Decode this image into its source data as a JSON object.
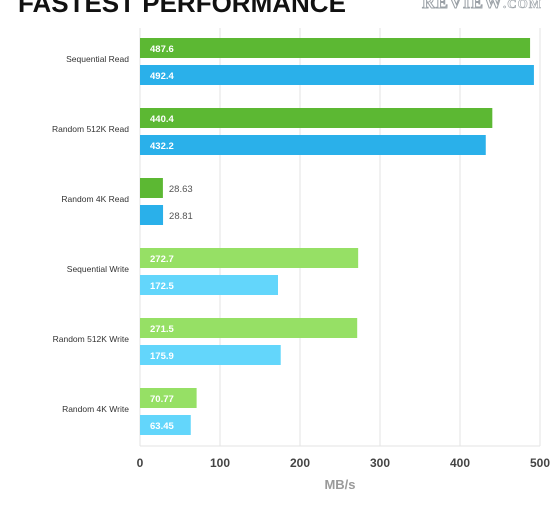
{
  "header": {
    "title": "FASTEST PERFORMANCE",
    "logo_main": "REVIEW",
    "logo_suffix": ".COM"
  },
  "chart_data": {
    "type": "bar",
    "orientation": "horizontal",
    "title": "FASTEST PERFORMANCE",
    "xlabel": "MB/s",
    "ylabel": "",
    "xlim": [
      0,
      500
    ],
    "xticks": [
      0,
      100,
      200,
      300,
      400,
      500
    ],
    "grid": true,
    "categories": [
      "Sequential Read",
      "Random 512K Read",
      "Random 4K Read",
      "Sequential Write",
      "Random 512K Write",
      "Random 4K Write"
    ],
    "series": [
      {
        "values": [
          487.6,
          440.4,
          28.63,
          272.7,
          271.5,
          70.77
        ]
      },
      {
        "values": [
          492.4,
          432.2,
          28.81,
          172.5,
          175.9,
          63.45
        ]
      }
    ],
    "colors": {
      "read_first": "#5cb833",
      "read_second": "#2ab0ea",
      "write_first": "#96e065",
      "write_second": "#63d6fb"
    }
  }
}
